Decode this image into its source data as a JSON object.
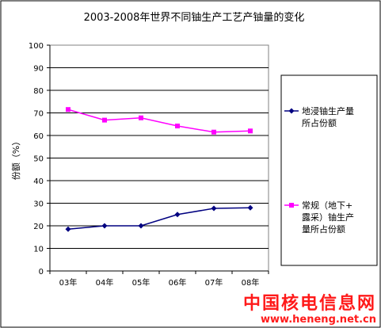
{
  "chart_data": {
    "type": "line",
    "title": "2003-2008年世界不同铀生产工艺产铀量的变化",
    "ylabel": "份额（%）",
    "xlabel": "",
    "categories": [
      "03年",
      "04年",
      "05年",
      "06年",
      "07年",
      "08年"
    ],
    "ylim": [
      0,
      100
    ],
    "yticks": [
      "0",
      "10",
      "20",
      "30",
      "40",
      "50",
      "60",
      "70",
      "80",
      "90",
      "100"
    ],
    "legend_position": "right",
    "grid": true,
    "series": [
      {
        "name": "地浸铀生产量所占份额",
        "legend_lines": [
          "地浸铀生产量",
          "所占份额"
        ],
        "color": "#000080",
        "marker": "diamond",
        "values": [
          18.5,
          20,
          20,
          25,
          27.7,
          28
        ]
      },
      {
        "name": "常规（地下+露采）铀生产量所占份额",
        "legend_lines": [
          "常规（地下+",
          "露采）铀生产",
          "量所占份额"
        ],
        "color": "#ff00ff",
        "marker": "square",
        "values": [
          71.5,
          66.8,
          67.8,
          64.2,
          61.5,
          62
        ]
      }
    ]
  },
  "watermark": {
    "name": "中国核电信息网",
    "url": "www.heneng.net.cn",
    "color": "#ff1a1a"
  }
}
